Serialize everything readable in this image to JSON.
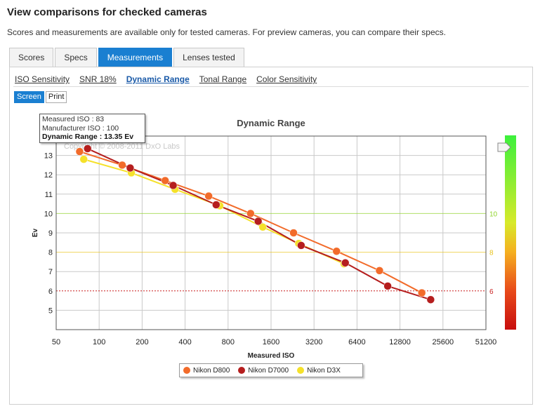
{
  "page": {
    "title": "View comparisons for checked cameras",
    "subtitle": "Scores and measurements are available only for tested cameras. For preview cameras, you can compare their specs."
  },
  "tabs": [
    {
      "label": "Scores",
      "active": false
    },
    {
      "label": "Specs",
      "active": false
    },
    {
      "label": "Measurements",
      "active": true
    },
    {
      "label": "Lenses tested",
      "active": false
    }
  ],
  "subtabs": [
    {
      "label": "ISO Sensitivity",
      "active": false
    },
    {
      "label": "SNR 18%",
      "active": false
    },
    {
      "label": "Dynamic Range",
      "active": true
    },
    {
      "label": "Tonal Range",
      "active": false
    },
    {
      "label": "Color Sensitivity",
      "active": false
    }
  ],
  "view_buttons": {
    "screen": "Screen",
    "print": "Print"
  },
  "tooltip": {
    "line1": "Measured ISO : 83",
    "line2": "Manufacturer ISO : 100",
    "line3": "Dynamic Range : 13.35 Ev"
  },
  "colors": {
    "accent": "#1a7fd1",
    "d800": "#f26b2a",
    "d7000": "#b51e1e",
    "d3x": "#f5e12a"
  },
  "chart_data": {
    "type": "line",
    "title": "Dynamic Range",
    "watermark": "Copyright © 2008-2011 DxO Labs",
    "xlabel": "Measured ISO",
    "ylabel": "Ev",
    "xscale": "log2",
    "xlim": [
      50,
      51200
    ],
    "ylim": [
      4,
      14
    ],
    "x_ticks": [
      50,
      100,
      200,
      400,
      800,
      1600,
      3200,
      6400,
      12800,
      25600,
      51200
    ],
    "y_ticks": [
      5,
      6,
      7,
      8,
      9,
      10,
      11,
      12,
      13
    ],
    "right_scale_ticks": [
      {
        "value": 10,
        "label": "10",
        "color": "#8fd42a"
      },
      {
        "value": 8,
        "label": "8",
        "color": "#e8c21a"
      },
      {
        "value": 6,
        "label": "6",
        "color": "#c81e1e"
      }
    ],
    "legend_position": "bottom-center",
    "grid": true,
    "series": [
      {
        "name": "Nikon D800",
        "color": "#f26b2a",
        "points": [
          [
            73,
            13.2
          ],
          [
            145,
            12.5
          ],
          [
            290,
            11.7
          ],
          [
            585,
            10.9
          ],
          [
            1150,
            10.0
          ],
          [
            2300,
            9.0
          ],
          [
            4600,
            8.05
          ],
          [
            9200,
            7.05
          ],
          [
            18200,
            5.9
          ]
        ]
      },
      {
        "name": "Nikon D7000",
        "color": "#b51e1e",
        "points": [
          [
            83,
            13.35
          ],
          [
            165,
            12.35
          ],
          [
            330,
            11.45
          ],
          [
            660,
            10.45
          ],
          [
            1300,
            9.6
          ],
          [
            2600,
            8.35
          ],
          [
            5300,
            7.45
          ],
          [
            10500,
            6.25
          ],
          [
            21000,
            5.55
          ]
        ]
      },
      {
        "name": "Nikon D3X",
        "color": "#f5e12a",
        "points": [
          [
            78,
            12.8
          ],
          [
            168,
            12.1
          ],
          [
            340,
            11.25
          ],
          [
            700,
            10.4
          ],
          [
            1400,
            9.3
          ],
          [
            2500,
            8.45
          ],
          [
            5200,
            7.4
          ]
        ]
      }
    ]
  }
}
